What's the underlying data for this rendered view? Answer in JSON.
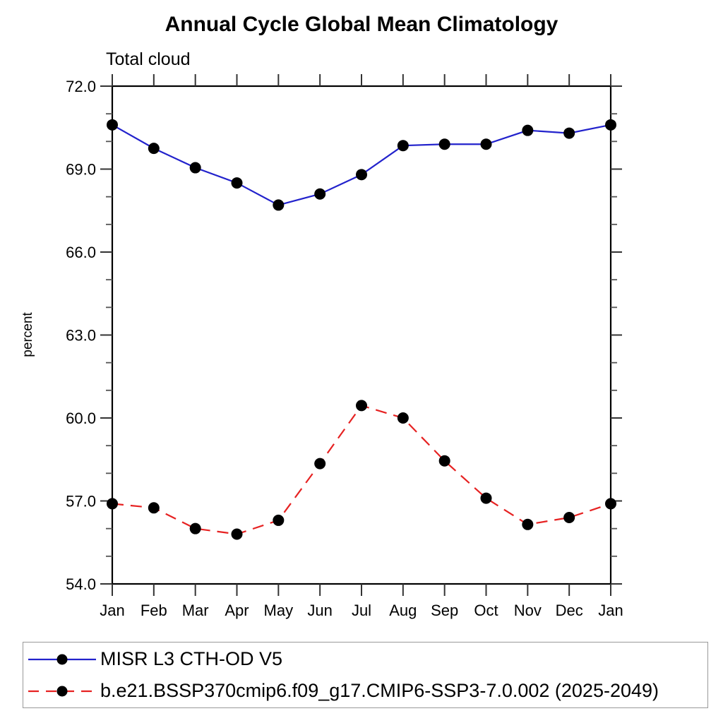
{
  "chart_data": {
    "type": "line",
    "title": "Annual Cycle Global Mean Climatology",
    "subtitle": "Total cloud",
    "ylabel": "percent",
    "categories": [
      "Jan",
      "Feb",
      "Mar",
      "Apr",
      "May",
      "Jun",
      "Jul",
      "Aug",
      "Sep",
      "Oct",
      "Nov",
      "Dec",
      "Jan"
    ],
    "ylim": [
      54.0,
      72.0
    ],
    "ytick_labels": [
      "54.0",
      "57.0",
      "60.0",
      "63.0",
      "66.0",
      "69.0",
      "72.0"
    ],
    "yticks_major": [
      54,
      57,
      60,
      63,
      66,
      69,
      72
    ],
    "ytick_minor_step": 1.0,
    "grid": false,
    "legend_position": "bottom-left-box",
    "axis_color": "#000000",
    "marker_color": "#000000",
    "series": [
      {
        "name": "MISR L3 CTH-OD V5",
        "color": "#2222cc",
        "style": "solid",
        "marker": "circle",
        "values": [
          70.6,
          69.75,
          69.05,
          68.5,
          67.7,
          68.1,
          68.8,
          69.85,
          69.9,
          69.9,
          70.4,
          70.3,
          70.6
        ]
      },
      {
        "name": "b.e21.BSSP370cmip6.f09_g17.CMIP6-SSP3-7.0.002 (2025-2049)",
        "color": "#e62222",
        "style": "dashed",
        "marker": "circle",
        "values": [
          56.9,
          56.75,
          56.0,
          55.8,
          56.3,
          58.35,
          60.45,
          60.0,
          58.45,
          57.1,
          56.15,
          56.4,
          56.9
        ]
      }
    ]
  }
}
